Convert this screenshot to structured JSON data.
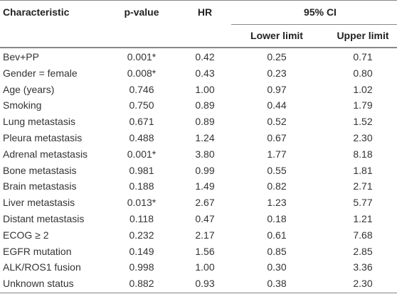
{
  "table": {
    "header": {
      "columns": [
        "Characteristic",
        "p-value",
        "HR"
      ],
      "group": "95% CI",
      "subcolumns": [
        "Lower limit",
        "Upper limit"
      ]
    },
    "rows": [
      [
        "Bev+PP",
        "0.001*",
        "0.42",
        "0.25",
        "0.71"
      ],
      [
        "Gender = female",
        "0.008*",
        "0.43",
        "0.23",
        "0.80"
      ],
      [
        "Age (years)",
        "0.746",
        "1.00",
        "0.97",
        "1.02"
      ],
      [
        "Smoking",
        "0.750",
        "0.89",
        "0.44",
        "1.79"
      ],
      [
        "Lung metastasis",
        "0.671",
        "0.89",
        "0.52",
        "1.52"
      ],
      [
        "Pleura metastasis",
        "0.488",
        "1.24",
        "0.67",
        "2.30"
      ],
      [
        "Adrenal metastasis",
        "0.001*",
        "3.80",
        "1.77",
        "8.18"
      ],
      [
        "Bone metastasis",
        "0.981",
        "0.99",
        "0.55",
        "1.81"
      ],
      [
        "Brain metastasis",
        "0.188",
        "1.49",
        "0.82",
        "2.71"
      ],
      [
        "Liver metastasis",
        "0.013*",
        "2.67",
        "1.23",
        "5.77"
      ],
      [
        "Distant metastasis",
        "0.118",
        "0.47",
        "0.18",
        "1.21"
      ],
      [
        "ECOG ≥ 2",
        "0.232",
        "2.17",
        "0.61",
        "7.68"
      ],
      [
        "EGFR mutation",
        "0.149",
        "1.56",
        "0.85",
        "2.85"
      ],
      [
        "ALK/ROS1 fusion",
        "0.998",
        "1.00",
        "0.30",
        "3.36"
      ],
      [
        "Unknown status",
        "0.882",
        "0.93",
        "0.38",
        "2.30"
      ]
    ]
  }
}
